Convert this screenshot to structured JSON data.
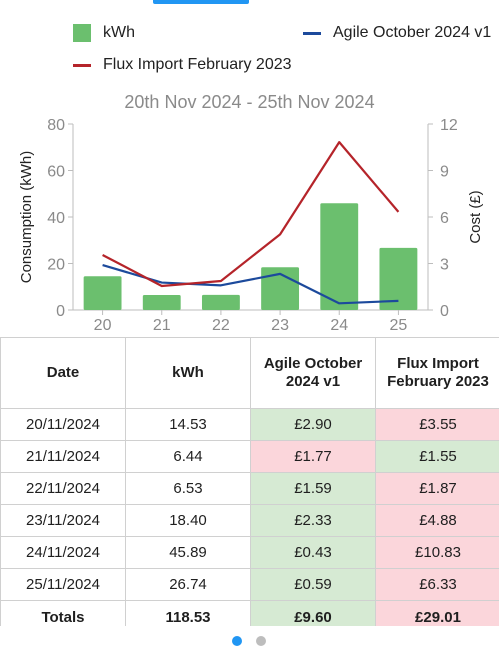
{
  "legend": {
    "kwh_label": "kWh",
    "agile_label": "Agile October 2024 v1",
    "flux_label": "Flux Import February 2023",
    "colors": {
      "kwh": "#6bbf6e",
      "agile": "#1c4a9c",
      "flux": "#b5242a"
    }
  },
  "range_title": "20th Nov 2024 - 25th Nov 2024",
  "chart_data": {
    "type": "bar",
    "title": "20th Nov 2024 - 25th Nov 2024",
    "categories": [
      "20",
      "21",
      "22",
      "23",
      "24",
      "25"
    ],
    "ylabel": "Consumption (kWh)",
    "y2label": "Cost (£)",
    "ylim": [
      0,
      80
    ],
    "y2lim": [
      0,
      12
    ],
    "yticks": [
      "0",
      "20",
      "40",
      "60",
      "80"
    ],
    "y2ticks": [
      "0",
      "3",
      "6",
      "9",
      "12"
    ],
    "series": [
      {
        "name": "kWh",
        "kind": "bar",
        "axis": "left",
        "color": "#6bbf6e",
        "values": [
          14.53,
          6.44,
          6.53,
          18.4,
          45.89,
          26.74
        ]
      },
      {
        "name": "Agile October 2024 v1",
        "kind": "line",
        "axis": "right",
        "color": "#1c4a9c",
        "values": [
          2.9,
          1.77,
          1.59,
          2.33,
          0.43,
          0.59
        ]
      },
      {
        "name": "Flux Import February 2023",
        "kind": "line",
        "axis": "right",
        "color": "#b5242a",
        "values": [
          3.55,
          1.55,
          1.87,
          4.88,
          10.83,
          6.33
        ]
      }
    ]
  },
  "table": {
    "headers": [
      "Date",
      "kWh",
      "Agile October 2024 v1",
      "Flux Import February 2023"
    ],
    "rows": [
      {
        "date": "20/11/2024",
        "kwh": "14.53",
        "agile": "£2.90",
        "flux": "£3.55",
        "agile_status": "good",
        "flux_status": "bad"
      },
      {
        "date": "21/11/2024",
        "kwh": "6.44",
        "agile": "£1.77",
        "flux": "£1.55",
        "agile_status": "bad",
        "flux_status": "good"
      },
      {
        "date": "22/11/2024",
        "kwh": "6.53",
        "agile": "£1.59",
        "flux": "£1.87",
        "agile_status": "good",
        "flux_status": "bad"
      },
      {
        "date": "23/11/2024",
        "kwh": "18.40",
        "agile": "£2.33",
        "flux": "£4.88",
        "agile_status": "good",
        "flux_status": "bad"
      },
      {
        "date": "24/11/2024",
        "kwh": "45.89",
        "agile": "£0.43",
        "flux": "£10.83",
        "agile_status": "good",
        "flux_status": "bad"
      },
      {
        "date": "25/11/2024",
        "kwh": "26.74",
        "agile": "£0.59",
        "flux": "£6.33",
        "agile_status": "good",
        "flux_status": "bad"
      }
    ],
    "totals": {
      "label": "Totals",
      "kwh": "118.53",
      "agile": "£9.60",
      "flux": "£29.01",
      "agile_status": "good",
      "flux_status": "bad"
    }
  },
  "pager": {
    "colors": {
      "active": "#2196f3",
      "inactive": "#bdbdbd"
    }
  }
}
